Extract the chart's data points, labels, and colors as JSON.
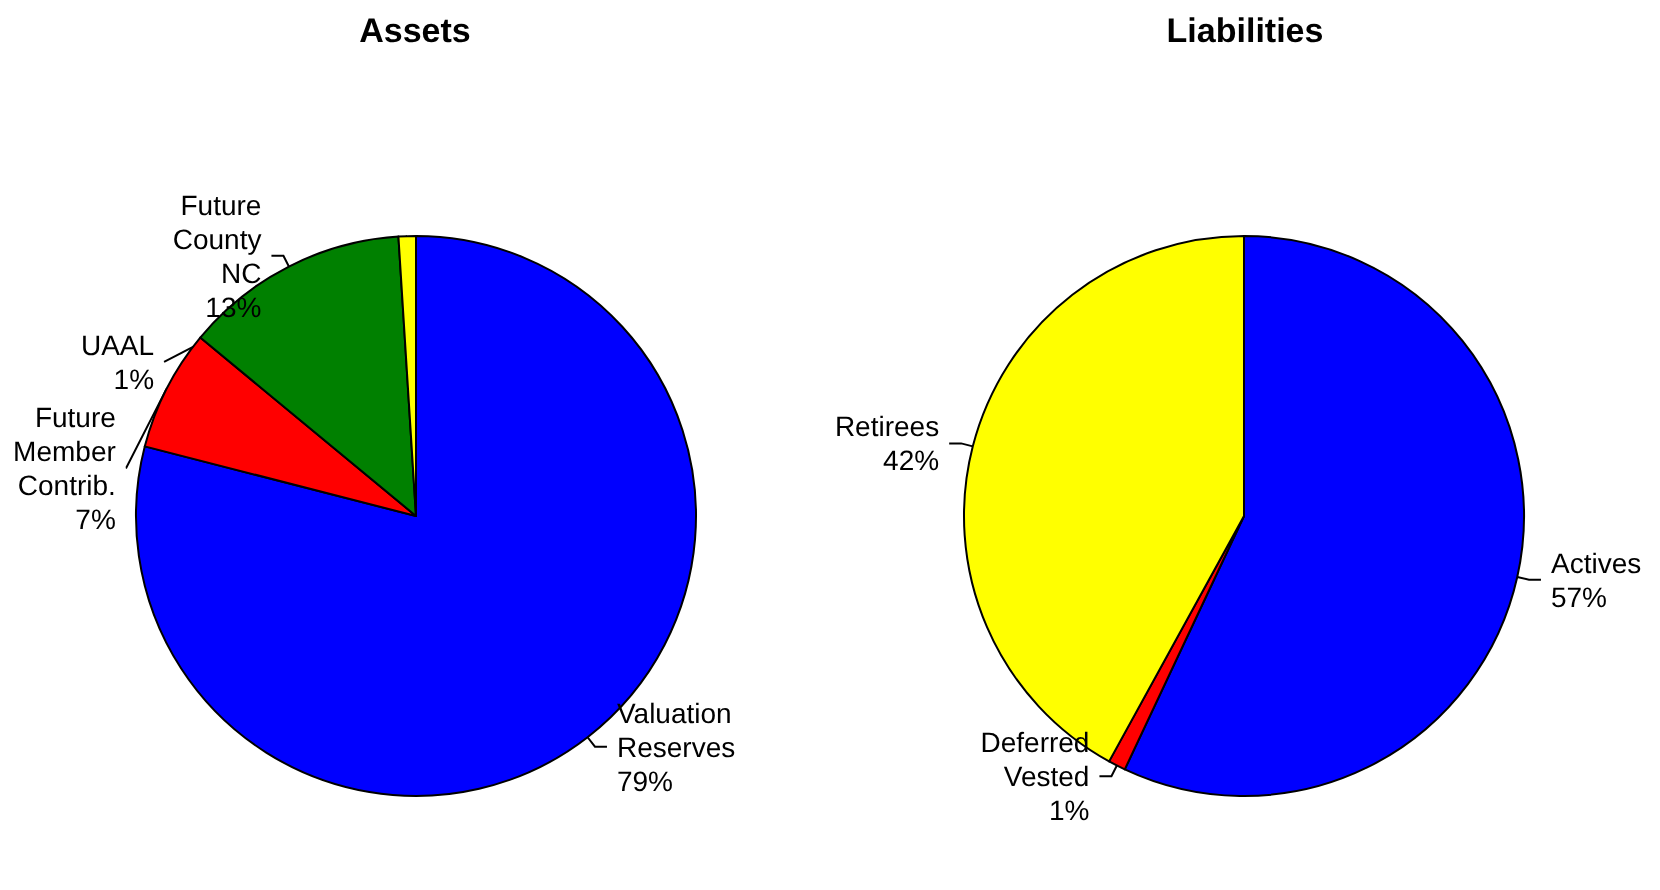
{
  "chart_data": [
    {
      "type": "pie",
      "title": "Assets",
      "categories": [
        "Valuation Reserves",
        "Future Member Contrib.",
        "Future County NC",
        "UAAL"
      ],
      "values": [
        79,
        7,
        13,
        1
      ],
      "colors": [
        "#0000ff",
        "#ff0000",
        "#008000",
        "#ffff00"
      ],
      "value_labels": [
        "79%",
        "7%",
        "13%",
        "1%"
      ]
    },
    {
      "type": "pie",
      "title": "Liabilities",
      "categories": [
        "Actives",
        "Deferred Vested",
        "Retirees"
      ],
      "values": [
        57,
        1,
        42
      ],
      "colors": [
        "#0000ff",
        "#ff0000",
        "#ffff00"
      ],
      "value_labels": [
        "57%",
        "1%",
        "42%"
      ]
    }
  ]
}
